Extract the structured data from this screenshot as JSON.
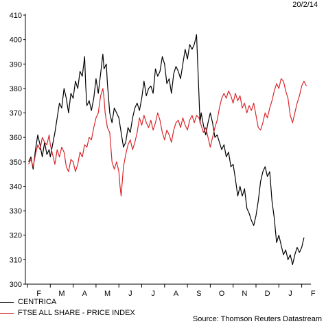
{
  "date_label": "20/2/14",
  "source": "Source: Thomson Reuters Datastream",
  "colors": {
    "centrica": "#000000",
    "ftse": "#d9262b",
    "axis": "#000000"
  },
  "chart_data": {
    "type": "line",
    "title": "",
    "xlabel": "",
    "ylabel": "",
    "ylim": [
      300,
      410
    ],
    "yticks": [
      300,
      310,
      320,
      330,
      340,
      350,
      360,
      370,
      380,
      390,
      400,
      410
    ],
    "x_month_labels": [
      "F",
      "M",
      "A",
      "M",
      "J",
      "J",
      "A",
      "S",
      "O",
      "N",
      "D",
      "J",
      "F"
    ],
    "legend": [
      "CENTRICA",
      "FTSE ALL SHARE - PRICE INDEX"
    ],
    "legend_position": "bottom-left",
    "grid": false,
    "x_unit": "months from start of Feb 2013",
    "series": [
      {
        "name": "CENTRICA",
        "points": [
          [
            0.05,
            350
          ],
          [
            0.15,
            352
          ],
          [
            0.25,
            347
          ],
          [
            0.35,
            355
          ],
          [
            0.45,
            361
          ],
          [
            0.55,
            357
          ],
          [
            0.65,
            352
          ],
          [
            0.75,
            358
          ],
          [
            0.85,
            353
          ],
          [
            0.95,
            355
          ],
          [
            1.0,
            352
          ],
          [
            1.1,
            357
          ],
          [
            1.2,
            362
          ],
          [
            1.3,
            368
          ],
          [
            1.4,
            374
          ],
          [
            1.5,
            372
          ],
          [
            1.6,
            380
          ],
          [
            1.7,
            376
          ],
          [
            1.8,
            370
          ],
          [
            1.9,
            378
          ],
          [
            2.0,
            376
          ],
          [
            2.1,
            383
          ],
          [
            2.2,
            380
          ],
          [
            2.3,
            387
          ],
          [
            2.4,
            385
          ],
          [
            2.5,
            393
          ],
          [
            2.55,
            381
          ],
          [
            2.6,
            373
          ],
          [
            2.7,
            375
          ],
          [
            2.8,
            371
          ],
          [
            2.9,
            376
          ],
          [
            3.0,
            384
          ],
          [
            3.1,
            378
          ],
          [
            3.2,
            386
          ],
          [
            3.3,
            394
          ],
          [
            3.35,
            388
          ],
          [
            3.45,
            390
          ],
          [
            3.5,
            382
          ],
          [
            3.6,
            370
          ],
          [
            3.7,
            366
          ],
          [
            3.8,
            372
          ],
          [
            3.9,
            370
          ],
          [
            4.0,
            368
          ],
          [
            4.1,
            362
          ],
          [
            4.2,
            356
          ],
          [
            4.3,
            358
          ],
          [
            4.4,
            364
          ],
          [
            4.5,
            362
          ],
          [
            4.6,
            368
          ],
          [
            4.7,
            372
          ],
          [
            4.8,
            374
          ],
          [
            4.9,
            371
          ],
          [
            5.0,
            376
          ],
          [
            5.1,
            383
          ],
          [
            5.2,
            377
          ],
          [
            5.3,
            380
          ],
          [
            5.4,
            381
          ],
          [
            5.5,
            378
          ],
          [
            5.6,
            388
          ],
          [
            5.7,
            385
          ],
          [
            5.8,
            387
          ],
          [
            5.9,
            393
          ],
          [
            6.0,
            390
          ],
          [
            6.1,
            382
          ],
          [
            6.2,
            384
          ],
          [
            6.3,
            378
          ],
          [
            6.4,
            386
          ],
          [
            6.5,
            389
          ],
          [
            6.6,
            387
          ],
          [
            6.7,
            384
          ],
          [
            6.8,
            390
          ],
          [
            6.9,
            396
          ],
          [
            7.0,
            392
          ],
          [
            7.1,
            398
          ],
          [
            7.2,
            396
          ],
          [
            7.3,
            398
          ],
          [
            7.4,
            402
          ],
          [
            7.45,
            390
          ],
          [
            7.5,
            378
          ],
          [
            7.55,
            366
          ],
          [
            7.6,
            370
          ],
          [
            7.7,
            365
          ],
          [
            7.8,
            361
          ],
          [
            7.9,
            366
          ],
          [
            8.0,
            370
          ],
          [
            8.1,
            366
          ],
          [
            8.2,
            360
          ],
          [
            8.3,
            361
          ],
          [
            8.4,
            358
          ],
          [
            8.5,
            355
          ],
          [
            8.6,
            357
          ],
          [
            8.7,
            352
          ],
          [
            8.8,
            354
          ],
          [
            8.9,
            348
          ],
          [
            9.0,
            349
          ],
          [
            9.1,
            343
          ],
          [
            9.2,
            336
          ],
          [
            9.3,
            340
          ],
          [
            9.4,
            336
          ],
          [
            9.5,
            339
          ],
          [
            9.6,
            331
          ],
          [
            9.7,
            329
          ],
          [
            9.8,
            326
          ],
          [
            9.9,
            324
          ],
          [
            10.0,
            328
          ],
          [
            10.1,
            334
          ],
          [
            10.2,
            342
          ],
          [
            10.3,
            346
          ],
          [
            10.4,
            348
          ],
          [
            10.5,
            344
          ],
          [
            10.6,
            346
          ],
          [
            10.7,
            334
          ],
          [
            10.8,
            327
          ],
          [
            10.9,
            317
          ],
          [
            11.0,
            320
          ],
          [
            11.1,
            316
          ],
          [
            11.2,
            312
          ],
          [
            11.3,
            314
          ],
          [
            11.4,
            310
          ],
          [
            11.5,
            312
          ],
          [
            11.6,
            308
          ],
          [
            11.7,
            312
          ],
          [
            11.8,
            315
          ],
          [
            11.9,
            313
          ],
          [
            12.0,
            315
          ],
          [
            12.1,
            319
          ]
        ]
      },
      {
        "name": "FTSE ALL SHARE - PRICE INDEX",
        "points": [
          [
            0.05,
            349
          ],
          [
            0.15,
            351
          ],
          [
            0.25,
            348
          ],
          [
            0.35,
            353
          ],
          [
            0.45,
            357
          ],
          [
            0.55,
            355
          ],
          [
            0.65,
            360
          ],
          [
            0.75,
            358
          ],
          [
            0.85,
            357
          ],
          [
            0.95,
            361
          ],
          [
            1.0,
            357
          ],
          [
            1.1,
            353
          ],
          [
            1.2,
            349
          ],
          [
            1.3,
            355
          ],
          [
            1.4,
            352
          ],
          [
            1.5,
            356
          ],
          [
            1.6,
            354
          ],
          [
            1.7,
            348
          ],
          [
            1.8,
            346
          ],
          [
            1.9,
            351
          ],
          [
            2.0,
            350
          ],
          [
            2.1,
            346
          ],
          [
            2.2,
            349
          ],
          [
            2.3,
            354
          ],
          [
            2.4,
            352
          ],
          [
            2.5,
            357
          ],
          [
            2.6,
            356
          ],
          [
            2.7,
            360
          ],
          [
            2.8,
            359
          ],
          [
            2.9,
            364
          ],
          [
            3.0,
            368
          ],
          [
            3.1,
            370
          ],
          [
            3.2,
            377
          ],
          [
            3.3,
            380
          ],
          [
            3.35,
            376
          ],
          [
            3.4,
            370
          ],
          [
            3.5,
            364
          ],
          [
            3.6,
            362
          ],
          [
            3.7,
            350
          ],
          [
            3.8,
            347
          ],
          [
            3.9,
            350
          ],
          [
            4.0,
            346
          ],
          [
            4.05,
            340
          ],
          [
            4.1,
            336
          ],
          [
            4.2,
            348
          ],
          [
            4.3,
            353
          ],
          [
            4.4,
            357
          ],
          [
            4.5,
            359
          ],
          [
            4.6,
            355
          ],
          [
            4.7,
            358
          ],
          [
            4.8,
            362
          ],
          [
            4.9,
            368
          ],
          [
            5.0,
            365
          ],
          [
            5.1,
            369
          ],
          [
            5.2,
            366
          ],
          [
            5.3,
            364
          ],
          [
            5.4,
            367
          ],
          [
            5.5,
            363
          ],
          [
            5.6,
            366
          ],
          [
            5.7,
            370
          ],
          [
            5.8,
            367
          ],
          [
            5.9,
            362
          ],
          [
            6.0,
            359
          ],
          [
            6.1,
            363
          ],
          [
            6.2,
            361
          ],
          [
            6.3,
            358
          ],
          [
            6.4,
            363
          ],
          [
            6.5,
            366
          ],
          [
            6.6,
            367
          ],
          [
            6.7,
            364
          ],
          [
            6.8,
            368
          ],
          [
            6.9,
            365
          ],
          [
            7.0,
            363
          ],
          [
            7.1,
            367
          ],
          [
            7.2,
            369
          ],
          [
            7.3,
            366
          ],
          [
            7.4,
            369
          ],
          [
            7.5,
            368
          ],
          [
            7.6,
            365
          ],
          [
            7.7,
            362
          ],
          [
            7.8,
            364
          ],
          [
            7.9,
            360
          ],
          [
            8.0,
            356
          ],
          [
            8.1,
            360
          ],
          [
            8.2,
            364
          ],
          [
            8.3,
            367
          ],
          [
            8.4,
            372
          ],
          [
            8.5,
            376
          ],
          [
            8.6,
            378
          ],
          [
            8.7,
            376
          ],
          [
            8.8,
            379
          ],
          [
            8.9,
            377
          ],
          [
            9.0,
            374
          ],
          [
            9.1,
            378
          ],
          [
            9.2,
            375
          ],
          [
            9.3,
            377
          ],
          [
            9.4,
            372
          ],
          [
            9.5,
            374
          ],
          [
            9.6,
            370
          ],
          [
            9.7,
            373
          ],
          [
            9.8,
            371
          ],
          [
            9.9,
            374
          ],
          [
            10.0,
            369
          ],
          [
            10.1,
            364
          ],
          [
            10.2,
            363
          ],
          [
            10.3,
            366
          ],
          [
            10.4,
            370
          ],
          [
            10.5,
            368
          ],
          [
            10.6,
            372
          ],
          [
            10.7,
            375
          ],
          [
            10.8,
            379
          ],
          [
            10.9,
            382
          ],
          [
            11.0,
            380
          ],
          [
            11.1,
            384
          ],
          [
            11.2,
            383
          ],
          [
            11.3,
            379
          ],
          [
            11.4,
            376
          ],
          [
            11.5,
            369
          ],
          [
            11.6,
            366
          ],
          [
            11.7,
            370
          ],
          [
            11.8,
            374
          ],
          [
            11.9,
            377
          ],
          [
            12.0,
            381
          ],
          [
            12.1,
            383
          ],
          [
            12.2,
            381
          ]
        ]
      }
    ]
  }
}
